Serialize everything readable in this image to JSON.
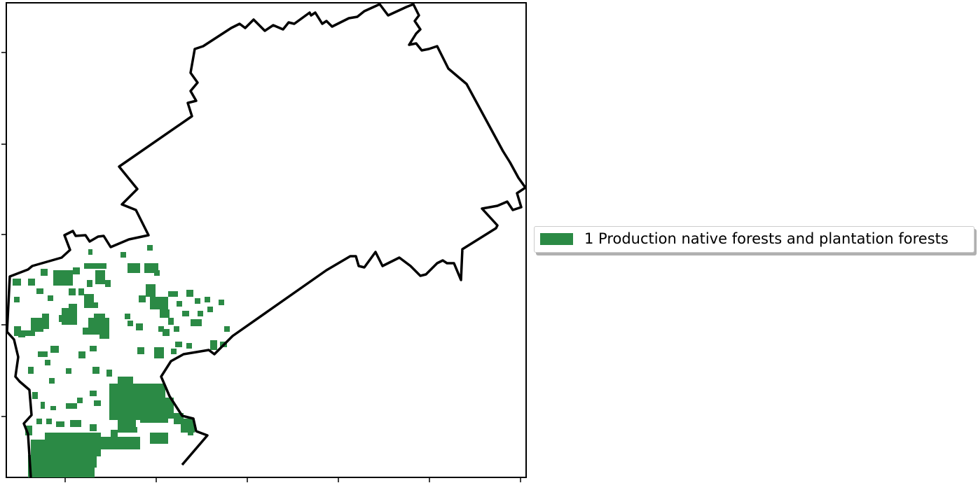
{
  "map": {
    "legend": [
      {
        "label": "1 Production native forests and plantation forests",
        "color": "#2b8a45"
      }
    ],
    "region_outline_color": "#000000",
    "x_tick_count": 6,
    "y_tick_count": 5
  }
}
